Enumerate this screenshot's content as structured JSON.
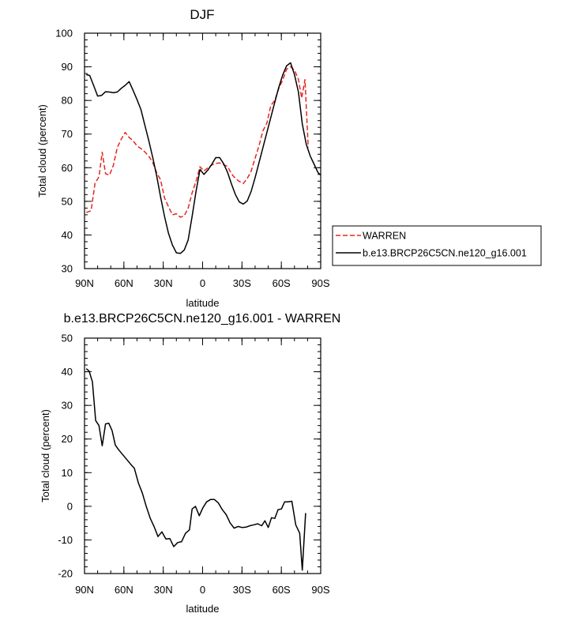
{
  "chart_data": [
    {
      "type": "line",
      "title": "DJF",
      "xlabel": "latitude",
      "ylabel": "Total cloud (percent)",
      "xlim": [
        90,
        -90
      ],
      "ylim": [
        30,
        100
      ],
      "xticks": [
        90,
        60,
        30,
        0,
        -30,
        -60,
        -90
      ],
      "xtick_labels": [
        "90N",
        "60N",
        "30N",
        "0",
        "30S",
        "60S",
        "90S"
      ],
      "yticks": [
        30,
        40,
        50,
        60,
        70,
        80,
        90,
        100
      ],
      "ytick_labels": [
        "30",
        "40",
        "50",
        "60",
        "70",
        "80",
        "90",
        "100"
      ],
      "legend_position": "right",
      "series": [
        {
          "name": "WARREN",
          "color": "#e8251e",
          "dash": "dashed",
          "points": [
            [
              88.7,
              46.7
            ],
            [
              85.0,
              47.2
            ],
            [
              82.0,
              55.4
            ],
            [
              79.0,
              57.3
            ],
            [
              76.5,
              64.6
            ],
            [
              74.0,
              58.2
            ],
            [
              71.0,
              57.8
            ],
            [
              68.0,
              60.7
            ],
            [
              65.0,
              66.0
            ],
            [
              62.0,
              68.5
            ],
            [
              59.0,
              70.5
            ],
            [
              56.0,
              69.0
            ],
            [
              53.0,
              68.0
            ],
            [
              50.0,
              66.5
            ],
            [
              47.0,
              65.7
            ],
            [
              44.0,
              64.7
            ],
            [
              41.0,
              63.4
            ],
            [
              38.0,
              61.5
            ],
            [
              35.0,
              58.5
            ],
            [
              32.0,
              56.4
            ],
            [
              29.0,
              51.0
            ],
            [
              26.0,
              48.4
            ],
            [
              23.0,
              46.0
            ],
            [
              20.0,
              46.3
            ],
            [
              17.0,
              45.3
            ],
            [
              14.0,
              45.7
            ],
            [
              11.0,
              48.0
            ],
            [
              8.0,
              52.5
            ],
            [
              5.0,
              56.0
            ],
            [
              2.0,
              60.3
            ],
            [
              -1.0,
              59.0
            ],
            [
              -4.0,
              60.0
            ],
            [
              -7.0,
              60.8
            ],
            [
              -10.0,
              61.3
            ],
            [
              -13.0,
              61.4
            ],
            [
              -16.0,
              60.9
            ],
            [
              -19.0,
              60.4
            ],
            [
              -22.0,
              58.2
            ],
            [
              -25.0,
              56.8
            ],
            [
              -28.0,
              55.9
            ],
            [
              -31.0,
              55.3
            ],
            [
              -34.0,
              56.8
            ],
            [
              -37.0,
              59.0
            ],
            [
              -40.0,
              62.8
            ],
            [
              -43.0,
              66.5
            ],
            [
              -46.0,
              71.0
            ],
            [
              -49.0,
              73.3
            ],
            [
              -52.0,
              78.5
            ],
            [
              -55.0,
              80.0
            ],
            [
              -58.0,
              83.5
            ],
            [
              -61.0,
              86.0
            ],
            [
              -64.0,
              89.3
            ],
            [
              -67.0,
              90.0
            ],
            [
              -70.0,
              89.0
            ],
            [
              -73.0,
              86.3
            ],
            [
              -75.5,
              80.7
            ],
            [
              -78.0,
              86.2
            ],
            [
              -80.5,
              66.0
            ]
          ]
        },
        {
          "name": "b.e13.BRCP26C5CN.ne120_g16.001",
          "color": "#000000",
          "dash": "solid",
          "points": [
            [
              88.7,
              87.7
            ],
            [
              86.0,
              87.4
            ],
            [
              83.0,
              84.4
            ],
            [
              80.0,
              81.3
            ],
            [
              77.0,
              81.5
            ],
            [
              74.0,
              82.6
            ],
            [
              71.0,
              82.5
            ],
            [
              68.0,
              82.3
            ],
            [
              65.0,
              82.5
            ],
            [
              62.0,
              83.6
            ],
            [
              59.0,
              84.5
            ],
            [
              56.0,
              85.6
            ],
            [
              53.0,
              83.0
            ],
            [
              50.0,
              80.3
            ],
            [
              47.0,
              77.3
            ],
            [
              44.0,
              72.6
            ],
            [
              41.0,
              68.0
            ],
            [
              38.0,
              63.0
            ],
            [
              35.0,
              57.5
            ],
            [
              32.0,
              51.3
            ],
            [
              29.0,
              45.5
            ],
            [
              26.0,
              40.5
            ],
            [
              23.0,
              37.0
            ],
            [
              20.0,
              34.7
            ],
            [
              17.0,
              34.5
            ],
            [
              14.0,
              35.5
            ],
            [
              11.0,
              38.5
            ],
            [
              8.0,
              45.5
            ],
            [
              5.0,
              53.0
            ],
            [
              2.0,
              59.5
            ],
            [
              -1.0,
              58.0
            ],
            [
              -4.0,
              59.3
            ],
            [
              -7.0,
              61.0
            ],
            [
              -10.0,
              63.0
            ],
            [
              -13.0,
              63.0
            ],
            [
              -16.0,
              61.2
            ],
            [
              -19.0,
              58.6
            ],
            [
              -22.0,
              55.2
            ],
            [
              -25.0,
              52.0
            ],
            [
              -28.0,
              49.8
            ],
            [
              -31.0,
              49.2
            ],
            [
              -34.0,
              50.1
            ],
            [
              -37.0,
              53.0
            ],
            [
              -40.0,
              57.0
            ],
            [
              -43.0,
              61.5
            ],
            [
              -46.0,
              66.0
            ],
            [
              -49.0,
              70.5
            ],
            [
              -52.0,
              75.0
            ],
            [
              -55.0,
              79.5
            ],
            [
              -58.0,
              83.8
            ],
            [
              -61.0,
              87.5
            ],
            [
              -64.0,
              90.3
            ],
            [
              -67.0,
              91.2
            ],
            [
              -70.0,
              87.7
            ],
            [
              -73.0,
              82.5
            ],
            [
              -76.0,
              73.0
            ],
            [
              -79.0,
              67.0
            ],
            [
              -82.0,
              63.5
            ],
            [
              -85.0,
              61.0
            ],
            [
              -88.0,
              58.5
            ],
            [
              -91.0,
              57.5
            ],
            [
              -93.5,
              64.0
            ]
          ]
        }
      ]
    },
    {
      "type": "line",
      "title": "b.e13.BRCP26C5CN.ne120_g16.001 - WARREN",
      "xlabel": "latitude",
      "ylabel": "Total cloud (percent)",
      "xlim": [
        90,
        -90
      ],
      "ylim": [
        -20,
        50
      ],
      "xticks": [
        90,
        60,
        30,
        0,
        -30,
        -60,
        -90
      ],
      "xtick_labels": [
        "90N",
        "60N",
        "30N",
        "0",
        "30S",
        "60S",
        "90S"
      ],
      "yticks": [
        -20,
        -10,
        0,
        10,
        20,
        30,
        40,
        50
      ],
      "ytick_labels": [
        "-20",
        "-10",
        "0",
        "10",
        "20",
        "30",
        "40",
        "50"
      ],
      "series": [
        {
          "color": "#000000",
          "dash": "solid",
          "points": [
            [
              88.7,
              40.9
            ],
            [
              86.5,
              40.2
            ],
            [
              84.0,
              37.0
            ],
            [
              81.5,
              25.5
            ],
            [
              79.0,
              24.0
            ],
            [
              76.5,
              18.0
            ],
            [
              74.0,
              24.5
            ],
            [
              71.5,
              24.7
            ],
            [
              69.0,
              22.5
            ],
            [
              66.5,
              18.2
            ],
            [
              64.0,
              16.8
            ],
            [
              61.0,
              15.4
            ],
            [
              58.0,
              14.0
            ],
            [
              55.0,
              12.6
            ],
            [
              52.0,
              11.3
            ],
            [
              49.0,
              7.0
            ],
            [
              46.0,
              4.0
            ],
            [
              43.0,
              0.0
            ],
            [
              40.0,
              -3.5
            ],
            [
              37.0,
              -6.0
            ],
            [
              34.0,
              -9.0
            ],
            [
              31.0,
              -7.6
            ],
            [
              28.0,
              -9.7
            ],
            [
              25.0,
              -9.6
            ],
            [
              22.0,
              -12.0
            ],
            [
              19.0,
              -10.8
            ],
            [
              16.0,
              -10.5
            ],
            [
              13.0,
              -8.0
            ],
            [
              10.0,
              -7.0
            ],
            [
              8.0,
              -0.8
            ],
            [
              5.5,
              0.0
            ],
            [
              2.5,
              -2.8
            ],
            [
              0.0,
              -0.6
            ],
            [
              -3.0,
              1.3
            ],
            [
              -6.0,
              2.0
            ],
            [
              -9.0,
              2.0
            ],
            [
              -12.0,
              1.0
            ],
            [
              -15.0,
              -1.0
            ],
            [
              -18.0,
              -2.5
            ],
            [
              -21.0,
              -5.0
            ],
            [
              -24.0,
              -6.5
            ],
            [
              -27.0,
              -6.0
            ],
            [
              -30.0,
              -6.3
            ],
            [
              -33.0,
              -6.2
            ],
            [
              -36.0,
              -5.8
            ],
            [
              -39.0,
              -5.5
            ],
            [
              -42.0,
              -5.2
            ],
            [
              -45.0,
              -5.8
            ],
            [
              -47.5,
              -4.3
            ],
            [
              -50.0,
              -6.3
            ],
            [
              -52.5,
              -3.4
            ],
            [
              -55.0,
              -3.6
            ],
            [
              -57.5,
              -1.0
            ],
            [
              -60.0,
              -0.8
            ],
            [
              -62.5,
              1.3
            ],
            [
              -65.0,
              1.3
            ],
            [
              -68.0,
              1.5
            ],
            [
              -71.0,
              -5.5
            ],
            [
              -74.0,
              -8.0
            ],
            [
              -76.0,
              -19.0
            ],
            [
              -78.5,
              -2.0
            ]
          ]
        }
      ]
    }
  ]
}
